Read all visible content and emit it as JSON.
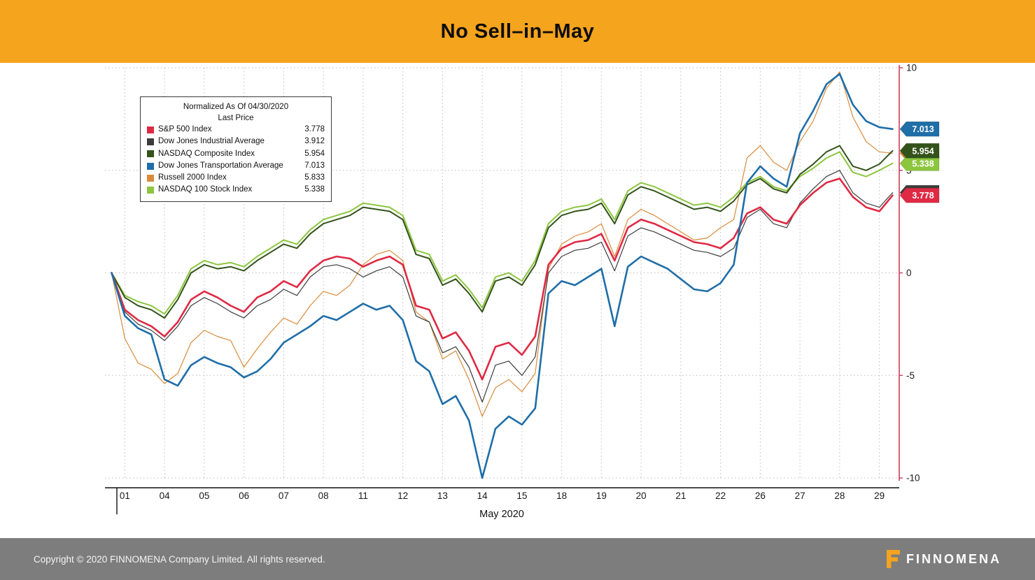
{
  "header": {
    "title": "No Sell–in–May",
    "background": "#f5a41d"
  },
  "chart_data": {
    "type": "line",
    "normalized_note": "Normalized As Of 04/30/2020",
    "legend_subtitle": "Last Price",
    "x_axis_label": "May 2020",
    "categories": [
      "01",
      "04",
      "05",
      "06",
      "07",
      "08",
      "11",
      "12",
      "13",
      "14",
      "15",
      "18",
      "19",
      "20",
      "21",
      "22",
      "26",
      "27",
      "28",
      "29"
    ],
    "points_per_day": 3,
    "ylim": [
      -10,
      10
    ],
    "yticks": [
      10,
      5,
      0,
      -5,
      -10
    ],
    "grid": "dotted",
    "legend_position": "top-left",
    "axis_color": "#d23b55",
    "grid_color": "#bdbdbd",
    "draw_order": [
      4,
      1,
      5,
      2,
      0,
      3
    ],
    "badge_order": [
      1,
      4,
      5,
      2,
      0,
      3
    ],
    "series": [
      {
        "name": "S&P 500 Index",
        "last_price": "3.778",
        "color": "#df2a44",
        "width": 2.6,
        "values": [
          0.0,
          -1.8,
          -2.3,
          -2.6,
          -3.1,
          -2.4,
          -1.3,
          -0.9,
          -1.2,
          -1.6,
          -1.9,
          -1.2,
          -0.9,
          -0.4,
          -0.7,
          0.1,
          0.6,
          0.8,
          0.7,
          0.3,
          0.6,
          0.8,
          0.4,
          -1.6,
          -1.8,
          -3.2,
          -2.9,
          -3.8,
          -5.2,
          -3.6,
          -3.4,
          -4.0,
          -3.1,
          0.4,
          1.2,
          1.5,
          1.6,
          1.9,
          0.6,
          2.2,
          2.6,
          2.4,
          2.1,
          1.8,
          1.5,
          1.4,
          1.2,
          1.7,
          2.9,
          3.2,
          2.6,
          2.4,
          3.3,
          3.9,
          4.4,
          4.6,
          3.7,
          3.2,
          3.0,
          3.778
        ]
      },
      {
        "name": "Dow Jones Industrial Average",
        "last_price": "3.912",
        "color": "#3c3c3c",
        "width": 1.2,
        "values": [
          0.0,
          -1.9,
          -2.5,
          -2.8,
          -3.3,
          -2.6,
          -1.6,
          -1.2,
          -1.5,
          -1.9,
          -2.2,
          -1.6,
          -1.3,
          -0.8,
          -1.1,
          -0.2,
          0.3,
          0.4,
          0.2,
          -0.2,
          0.1,
          0.3,
          -0.2,
          -2.1,
          -2.4,
          -3.9,
          -3.6,
          -4.6,
          -6.3,
          -4.5,
          -4.3,
          -5.0,
          -4.1,
          0.0,
          0.8,
          1.1,
          1.2,
          1.5,
          0.1,
          1.8,
          2.2,
          2.0,
          1.7,
          1.4,
          1.1,
          1.0,
          0.8,
          1.2,
          2.7,
          3.1,
          2.4,
          2.2,
          3.4,
          4.1,
          4.7,
          5.0,
          3.9,
          3.4,
          3.2,
          3.912
        ]
      },
      {
        "name": "NASDAQ Composite Index",
        "last_price": "5.954",
        "color": "#33531b",
        "width": 2.0,
        "values": [
          0.0,
          -1.2,
          -1.6,
          -1.8,
          -2.2,
          -1.3,
          0.0,
          0.4,
          0.2,
          0.3,
          0.1,
          0.6,
          1.0,
          1.4,
          1.2,
          1.9,
          2.4,
          2.6,
          2.8,
          3.2,
          3.1,
          3.0,
          2.6,
          0.9,
          0.7,
          -0.6,
          -0.3,
          -1.0,
          -1.9,
          -0.4,
          -0.2,
          -0.6,
          0.4,
          2.2,
          2.8,
          3.0,
          3.1,
          3.4,
          2.4,
          3.8,
          4.2,
          4.0,
          3.7,
          3.4,
          3.1,
          3.2,
          3.0,
          3.5,
          4.3,
          4.6,
          4.1,
          3.9,
          4.8,
          5.3,
          5.9,
          6.2,
          5.2,
          5.0,
          5.3,
          5.954
        ]
      },
      {
        "name": "Dow Jones Transportation Average",
        "last_price": "7.013",
        "color": "#1f6ea8",
        "width": 2.6,
        "values": [
          0.0,
          -2.1,
          -2.7,
          -3.0,
          -5.2,
          -5.5,
          -4.5,
          -4.1,
          -4.4,
          -4.6,
          -5.1,
          -4.8,
          -4.2,
          -3.4,
          -3.0,
          -2.6,
          -2.1,
          -2.3,
          -1.9,
          -1.5,
          -1.8,
          -1.6,
          -2.3,
          -4.3,
          -4.8,
          -6.4,
          -6.0,
          -7.2,
          -10.0,
          -7.6,
          -7.0,
          -7.4,
          -6.6,
          -1.0,
          -0.4,
          -0.6,
          -0.2,
          0.2,
          -2.6,
          0.3,
          0.8,
          0.5,
          0.2,
          -0.3,
          -0.8,
          -0.9,
          -0.5,
          0.4,
          4.4,
          5.2,
          4.6,
          4.2,
          6.8,
          7.9,
          9.2,
          9.7,
          8.2,
          7.4,
          7.1,
          7.013
        ]
      },
      {
        "name": "Russell 2000 Index",
        "last_price": "5.833",
        "color": "#d98b3a",
        "width": 1.2,
        "values": [
          0.0,
          -3.2,
          -4.4,
          -4.7,
          -5.4,
          -4.9,
          -3.4,
          -2.8,
          -3.1,
          -3.3,
          -4.6,
          -3.7,
          -2.9,
          -2.2,
          -2.5,
          -1.6,
          -0.9,
          -1.1,
          -0.6,
          0.4,
          0.9,
          1.1,
          0.6,
          -1.9,
          -2.4,
          -4.2,
          -3.8,
          -5.2,
          -7.0,
          -5.6,
          -5.2,
          -5.8,
          -4.9,
          0.2,
          1.4,
          1.8,
          2.0,
          2.4,
          0.8,
          2.6,
          3.1,
          2.8,
          2.4,
          2.0,
          1.6,
          1.7,
          2.2,
          2.6,
          5.6,
          6.2,
          5.4,
          5.0,
          6.4,
          7.4,
          9.0,
          9.8,
          7.6,
          6.4,
          5.9,
          5.833
        ]
      },
      {
        "name": "NASDAQ 100 Stock Index",
        "last_price": "5.338",
        "color": "#8cc63e",
        "width": 2.0,
        "values": [
          0.0,
          -1.1,
          -1.4,
          -1.6,
          -2.0,
          -1.1,
          0.2,
          0.6,
          0.4,
          0.5,
          0.3,
          0.8,
          1.2,
          1.6,
          1.4,
          2.1,
          2.6,
          2.8,
          3.0,
          3.4,
          3.3,
          3.2,
          2.8,
          1.1,
          0.9,
          -0.4,
          -0.1,
          -0.8,
          -1.7,
          -0.2,
          0.0,
          -0.4,
          0.6,
          2.4,
          3.0,
          3.2,
          3.3,
          3.6,
          2.6,
          4.0,
          4.4,
          4.2,
          3.9,
          3.6,
          3.3,
          3.4,
          3.2,
          3.7,
          4.4,
          4.7,
          4.2,
          4.0,
          4.7,
          5.1,
          5.6,
          5.9,
          4.9,
          4.7,
          5.0,
          5.338
        ]
      }
    ]
  },
  "footer": {
    "copyright": "Copyright © 2020 FINNOMENA Company Limited. All rights reserved.",
    "brand": "FINNOMENA",
    "background": "#7d7d7d",
    "brand_color": "#f5a41d"
  }
}
